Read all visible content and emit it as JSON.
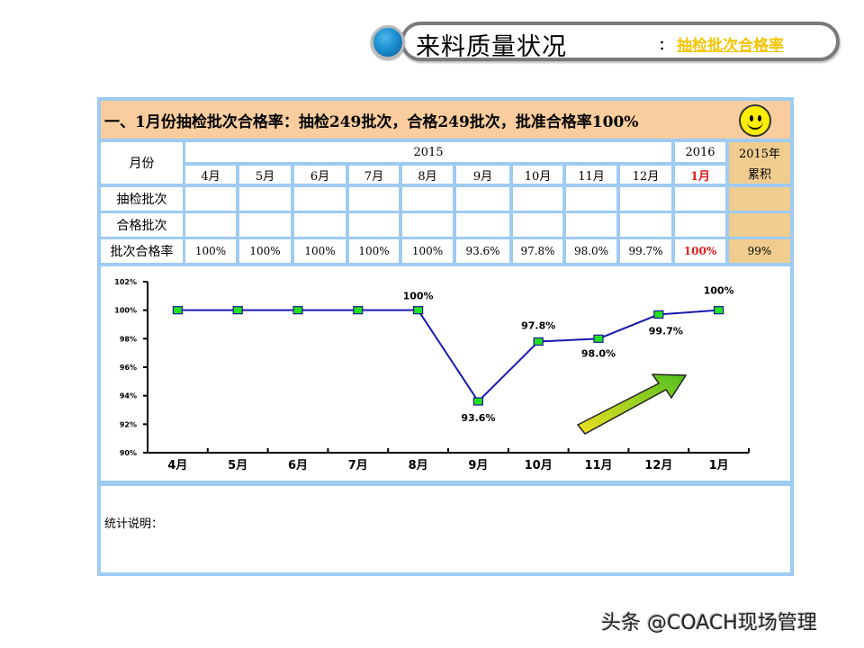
{
  "header": {
    "title": "来料质量状况",
    "separator": "：",
    "link": "抽检批次合格率"
  },
  "banner": {
    "text": "一、1月份抽检批次合格率：抽检249批次，合格249批次，批准合格率100%",
    "icon": "smiley-face-icon"
  },
  "table": {
    "row_header_label": "月份",
    "year_2015": "2015",
    "year_2016": "2016",
    "cumulative_label_line1": "2015年",
    "cumulative_label_line2": "累积",
    "months": [
      "4月",
      "5月",
      "6月",
      "7月",
      "8月",
      "9月",
      "10月",
      "11月",
      "12月",
      "1月"
    ],
    "rows": [
      {
        "label": "抽检批次",
        "values": [
          "",
          "",
          "",
          "",
          "",
          "",
          "",
          "",
          "",
          ""
        ],
        "cumulative": ""
      },
      {
        "label": "合格批次",
        "values": [
          "",
          "",
          "",
          "",
          "",
          "",
          "",
          "",
          "",
          ""
        ],
        "cumulative": ""
      },
      {
        "label": "批次合格率",
        "values": [
          "100%",
          "100%",
          "100%",
          "100%",
          "100%",
          "93.6%",
          "97.8%",
          "98.0%",
          "99.7%",
          "100%"
        ],
        "cumulative": "99%"
      }
    ]
  },
  "chart_data": {
    "type": "line",
    "title": "",
    "xlabel": "",
    "ylabel": "",
    "categories": [
      "4月",
      "5月",
      "6月",
      "7月",
      "8月",
      "9月",
      "10月",
      "11月",
      "12月",
      "1月"
    ],
    "series": [
      {
        "name": "批次合格率",
        "values": [
          100,
          100,
          100,
          100,
          100,
          93.6,
          97.8,
          98.0,
          99.7,
          100
        ]
      }
    ],
    "data_labels": [
      {
        "category": "8月",
        "text": "100%"
      },
      {
        "category": "9月",
        "text": "93.6%"
      },
      {
        "category": "10月",
        "text": "97.8%"
      },
      {
        "category": "11月",
        "text": "98.0%"
      },
      {
        "category": "12月",
        "text": "99.7%"
      },
      {
        "category": "1月",
        "text": "100%"
      }
    ],
    "yticks": [
      "90%",
      "92%",
      "94%",
      "96%",
      "98%",
      "100%",
      "102%"
    ],
    "ylim": [
      90,
      102
    ],
    "grid": false,
    "legend": "none",
    "annotations": [
      "upward-trend-arrow"
    ],
    "colors": {
      "line": "#1a1ab0",
      "marker": "#22e022",
      "arrow_start": "#f0e020",
      "arrow_end": "#50c020"
    }
  },
  "notes": {
    "label": "统计说明："
  },
  "watermark": "头条 @COACH现场管理"
}
